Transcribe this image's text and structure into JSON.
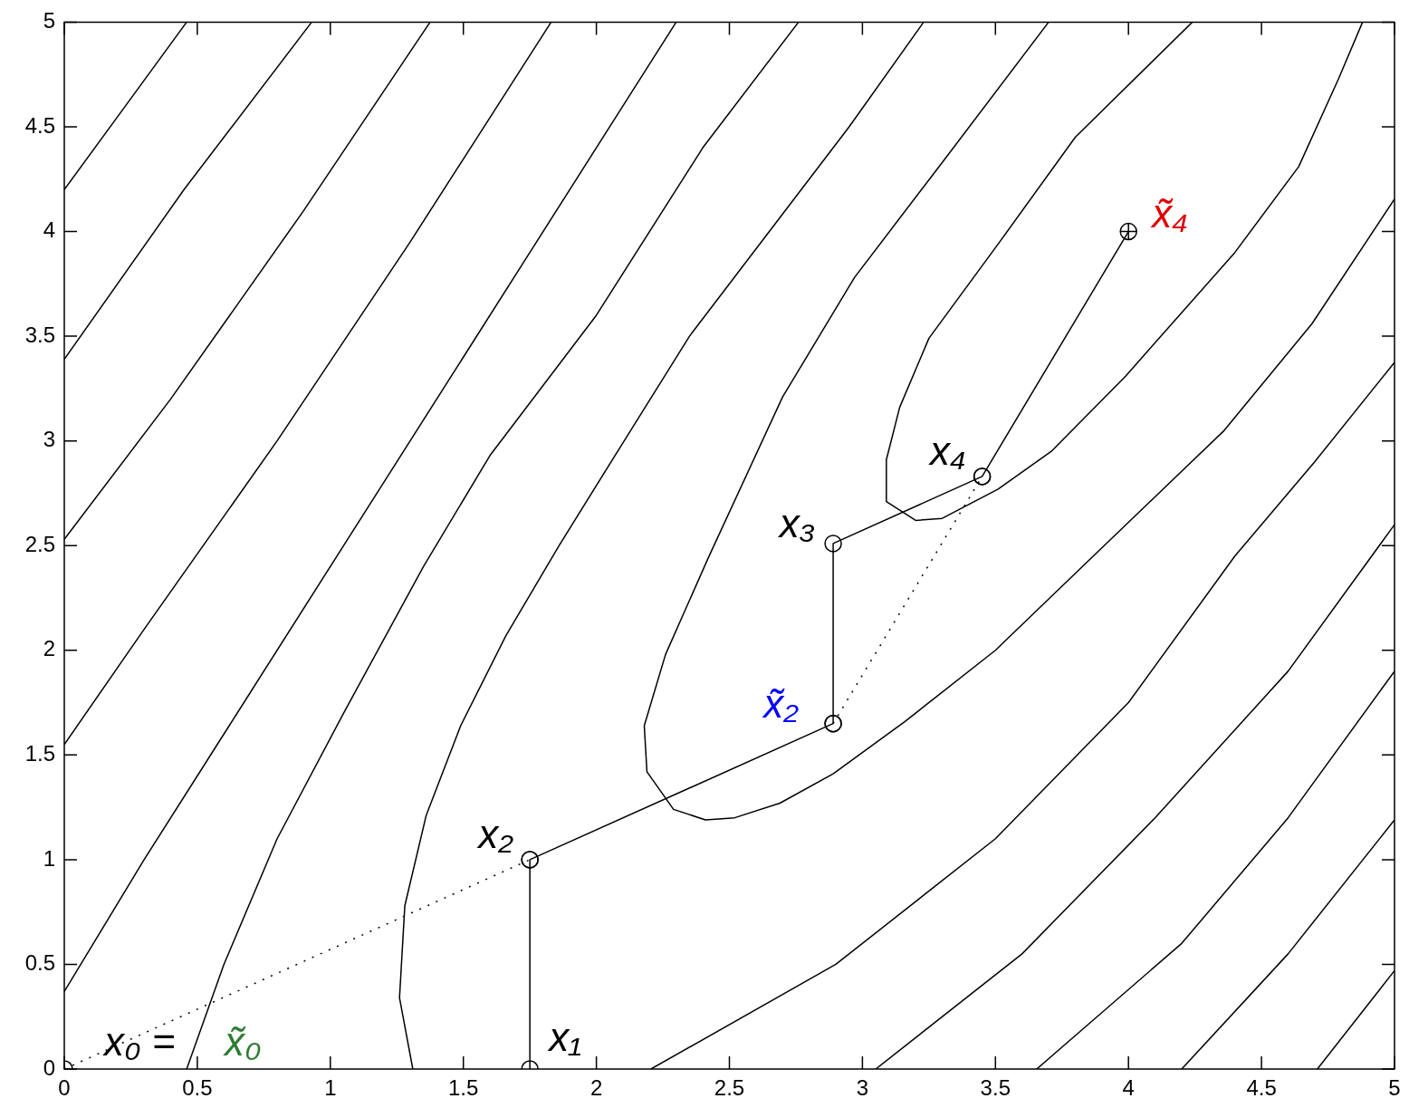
{
  "chart_data": {
    "type": "line",
    "xlim": [
      0,
      5
    ],
    "ylim": [
      0,
      5
    ],
    "xticks": [
      0,
      0.5,
      1,
      1.5,
      2,
      2.5,
      3,
      3.5,
      4,
      4.5,
      5
    ],
    "yticks": [
      0,
      0.5,
      1,
      1.5,
      2,
      2.5,
      3,
      3.5,
      4,
      4.5,
      5
    ],
    "grid": false,
    "legend": false,
    "series": [
      {
        "type": "line",
        "color": "#000000",
        "marker": "none",
        "x": [
          0,
          0.23,
          0.46
        ],
        "values": [
          4.2,
          4.6,
          5
        ]
      },
      {
        "type": "line",
        "color": "#000000",
        "marker": "none",
        "x": [
          0,
          0.45,
          0.93
        ],
        "values": [
          3.39,
          4.2,
          5
        ]
      },
      {
        "type": "line",
        "color": "#000000",
        "marker": "none",
        "x": [
          0,
          0.4,
          0.9,
          1.375
        ],
        "values": [
          2.53,
          3.2,
          4.1,
          5
        ]
      },
      {
        "type": "line",
        "color": "#000000",
        "marker": "none",
        "x": [
          0,
          0.3,
          0.8,
          1.3,
          1.83
        ],
        "values": [
          1.55,
          2.1,
          3.0,
          3.95,
          5
        ]
      },
      {
        "type": "line",
        "color": "#000000",
        "marker": "none",
        "x": [
          0,
          0.3,
          0.7,
          1.2,
          1.75,
          2.3
        ],
        "values": [
          0.37,
          1.0,
          1.8,
          2.8,
          3.9,
          5
        ]
      },
      {
        "type": "line",
        "color": "#000000",
        "marker": "none",
        "x": [
          0.46,
          0.6,
          0.8,
          1.05,
          1.35,
          1.6,
          2.0,
          2.4,
          2.76
        ],
        "values": [
          0,
          0.5,
          1.1,
          1.7,
          2.4,
          2.93,
          3.6,
          4.4,
          5
        ]
      },
      {
        "type": "line",
        "color": "#000000",
        "marker": "none",
        "x": [
          1.31,
          1.26,
          1.28,
          1.36,
          1.49,
          1.66,
          1.86,
          2.07,
          2.35,
          2.65,
          2.95,
          3.23
        ],
        "values": [
          0,
          0.34,
          0.78,
          1.21,
          1.64,
          2.07,
          2.5,
          2.93,
          3.5,
          4.0,
          4.5,
          5
        ]
      },
      {
        "type": "line",
        "color": "#000000",
        "marker": "none",
        "x": [
          3.7,
          3.33,
          2.97,
          2.7,
          2.42,
          2.26,
          2.18,
          2.19,
          2.29,
          2.41,
          2.52,
          2.69,
          2.89,
          3.16,
          3.5,
          3.86,
          4.36,
          4.69,
          5
        ],
        "values": [
          5,
          4.38,
          3.78,
          3.21,
          2.44,
          1.98,
          1.64,
          1.42,
          1.24,
          1.19,
          1.2,
          1.27,
          1.41,
          1.66,
          2.0,
          2.44,
          3.05,
          3.56,
          4.155
        ]
      },
      {
        "type": "line",
        "color": "#000000",
        "marker": "none",
        "x": [
          4.24,
          3.8,
          3.51,
          3.25,
          3.14,
          3.09,
          3.09,
          3.2,
          3.3,
          3.51,
          3.71,
          3.99,
          4.4,
          4.64,
          4.79,
          4.88
        ],
        "values": [
          5,
          4.45,
          3.94,
          3.49,
          3.16,
          2.91,
          2.71,
          2.62,
          2.63,
          2.77,
          2.95,
          3.31,
          3.9,
          4.31,
          4.73,
          5
        ]
      },
      {
        "type": "line",
        "color": "#000000",
        "marker": "none",
        "x": [
          2.205,
          2.9,
          3.5,
          4.0,
          4.4,
          4.7,
          5
        ],
        "values": [
          0,
          0.5,
          1.1,
          1.75,
          2.45,
          2.9,
          3.375
        ]
      },
      {
        "type": "line",
        "color": "#000000",
        "marker": "none",
        "x": [
          3.05,
          3.6,
          4.1,
          4.6,
          5
        ],
        "values": [
          0,
          0.55,
          1.2,
          1.9,
          2.6
        ]
      },
      {
        "type": "line",
        "color": "#000000",
        "marker": "none",
        "x": [
          3.655,
          4.2,
          4.6,
          5
        ],
        "values": [
          0,
          0.6,
          1.2,
          1.9
        ]
      },
      {
        "type": "line",
        "color": "#000000",
        "marker": "none",
        "x": [
          4.2,
          4.6,
          5
        ],
        "values": [
          0,
          0.55,
          1.19
        ]
      },
      {
        "type": "line",
        "color": "#000000",
        "marker": "none",
        "x": [
          4.71,
          5
        ],
        "values": [
          0,
          0.47
        ]
      },
      {
        "type": "line",
        "color": "#000000",
        "marker": "circle",
        "line_style": "dotted",
        "x": [
          0,
          1.75
        ],
        "values": [
          0,
          1
        ]
      },
      {
        "type": "line",
        "color": "#000000",
        "marker": "circle",
        "line_style": "dotted",
        "x": [
          2.89,
          3.45
        ],
        "values": [
          1.65,
          2.83
        ]
      },
      {
        "type": "line",
        "color": "#000000",
        "marker": "circle",
        "line_style": "solid",
        "x": [
          1.75,
          1.75,
          2.89,
          2.89,
          3.45,
          4
        ],
        "values": [
          0,
          1,
          1.65,
          2.51,
          2.83,
          4
        ]
      },
      {
        "type": "scatter",
        "color": "#000000",
        "marker": "cross",
        "x": [
          4
        ],
        "values": [
          4
        ]
      }
    ],
    "annotations": [
      {
        "text": "x₀ =",
        "x": 0,
        "y": 0
      },
      "x̃₀",
      {
        "text": "x₁",
        "x": 1.75,
        "y": 0
      },
      {
        "text": "x₂",
        "x": 1.75,
        "y": 1
      },
      {
        "text": "x̃₂",
        "x": 2.89,
        "y": 1.65
      },
      {
        "text": "x₃",
        "x": 2.89,
        "y": 2.51
      },
      {
        "text": "x₄",
        "x": 3.45,
        "y": 2.83
      },
      {
        "text": "x̃₄",
        "x": 4,
        "y": 4
      }
    ]
  }
}
